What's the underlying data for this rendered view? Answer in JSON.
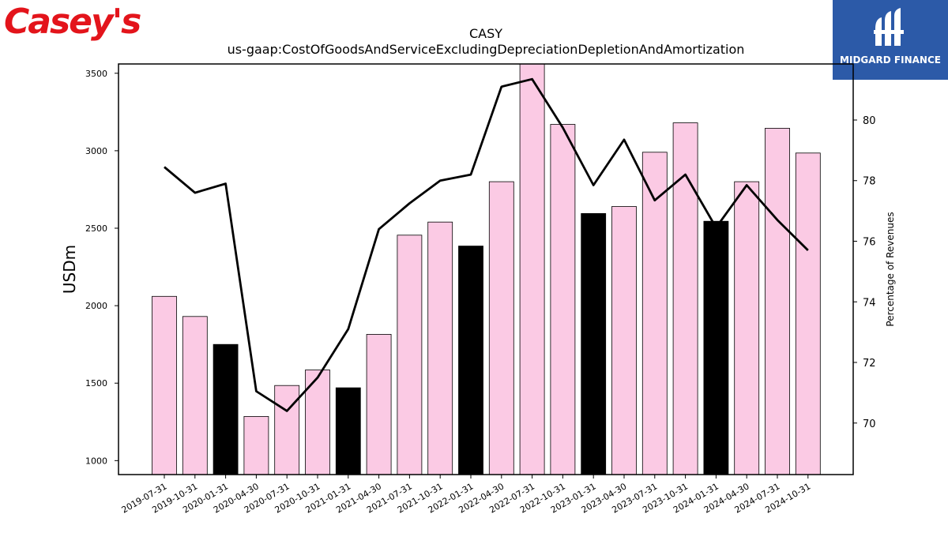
{
  "branding": {
    "company_logo_text": "Casey's",
    "partner_logo_text": "MIDGARD FINANCE",
    "company_color": "#e3141b",
    "partner_color": "#2c5aa8"
  },
  "chart_data": {
    "type": "bar",
    "title": "CASY",
    "subtitle": "us-gaap:CostOfGoodsAndServiceExcludingDepreciationDepletionAndAmortization",
    "ylabel": "USDm",
    "y2label": "Percentage of Revenues",
    "categories": [
      "2019-07-31",
      "2019-10-31",
      "2020-01-31",
      "2020-04-30",
      "2020-07-31",
      "2020-10-31",
      "2021-01-31",
      "2021-04-30",
      "2021-07-31",
      "2021-10-31",
      "2022-01-31",
      "2022-04-30",
      "2022-07-31",
      "2022-10-31",
      "2023-01-31",
      "2023-04-30",
      "2023-07-31",
      "2023-10-31",
      "2024-01-31",
      "2024-04-30",
      "2024-07-31",
      "2024-10-31"
    ],
    "series": [
      {
        "type": "bar",
        "axis": "left",
        "values": [
          2060,
          1930,
          1750,
          1285,
          1485,
          1585,
          1470,
          1815,
          2455,
          2540,
          2385,
          2800,
          3580,
          3170,
          2595,
          2640,
          2990,
          3180,
          2545,
          2800,
          3145,
          2985
        ],
        "highlight": [
          false,
          false,
          true,
          false,
          false,
          false,
          true,
          false,
          false,
          false,
          true,
          false,
          false,
          false,
          true,
          false,
          false,
          false,
          true,
          false,
          false,
          false
        ]
      },
      {
        "type": "line",
        "axis": "right",
        "values": [
          78.45,
          77.6,
          77.9,
          71.05,
          70.4,
          71.5,
          73.1,
          76.4,
          77.25,
          78.0,
          78.2,
          81.1,
          81.35,
          79.75,
          77.85,
          79.35,
          77.35,
          78.2,
          76.45,
          77.85,
          76.7,
          75.7
        ]
      }
    ],
    "ylim": [
      910,
      3560
    ],
    "yticks": [
      1000,
      1500,
      2000,
      2500,
      3000,
      3500
    ],
    "y2lim": [
      68.3,
      81.85
    ],
    "y2ticks": [
      70,
      72,
      74,
      76,
      78,
      80
    ],
    "colors": {
      "bar": "#fbcae4",
      "bar_highlight": "#000000",
      "line": "#000000"
    },
    "grid": false,
    "legend": "none"
  }
}
